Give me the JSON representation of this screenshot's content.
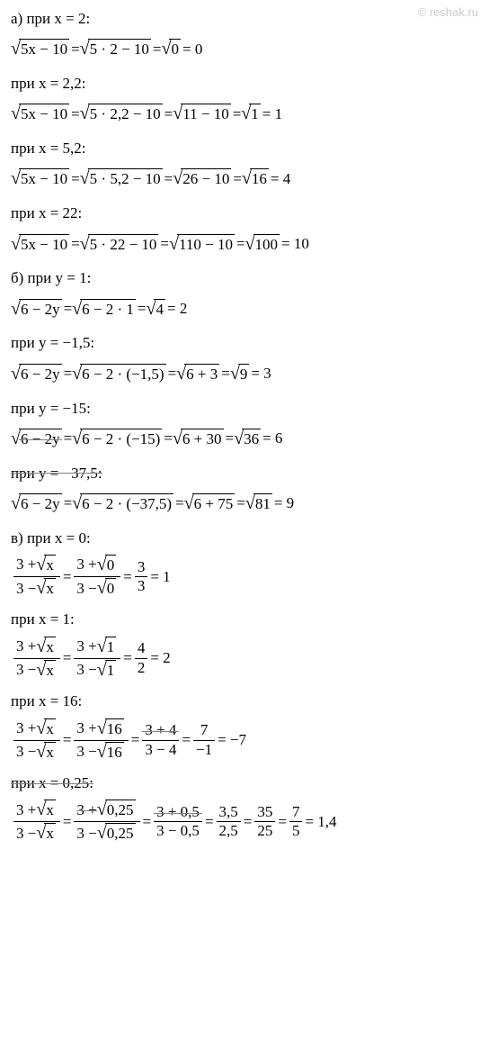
{
  "watermark": "© reshak.ru",
  "lines": {
    "a_at_2": "а) при x = 2:",
    "a_eq_2_l": "5x − 10",
    "a_eq_2_m": "5 · 2 − 10",
    "a_eq_2_r": "0",
    "a_eq_2_res": " = 0",
    "a_at_22": "при x = 2,2:",
    "a_eq_22_l": "5x − 10",
    "a_eq_22_m": "5 · 2,2 − 10",
    "a_eq_22_m2": "11 − 10",
    "a_eq_22_r": "1",
    "a_eq_22_res": " = 1",
    "a_at_52": "при x = 5,2:",
    "a_eq_52_l": "5x − 10",
    "a_eq_52_m": "5 · 5,2 − 10",
    "a_eq_52_m2": "26 − 10",
    "a_eq_52_r": "16",
    "a_eq_52_res": " = 4",
    "a_at_x22": "при x = 22:",
    "a_eq_x22_l": "5x − 10",
    "a_eq_x22_m": "5 · 22 − 10",
    "a_eq_x22_m2": "110 − 10",
    "a_eq_x22_r": "100",
    "a_eq_x22_res": " = 10",
    "b_at_1": "б) при y = 1:",
    "b_eq_1_l": "6 − 2y",
    "b_eq_1_m": "6 − 2 · 1",
    "b_eq_1_r": "4",
    "b_eq_1_res": " = 2",
    "b_at_n15": "при y = −1,5:",
    "b_eq_n15_l": "6 − 2y",
    "b_eq_n15_m": "6 − 2 · (−1,5)",
    "b_eq_n15_m2": "6 + 3",
    "b_eq_n15_r": "9",
    "b_eq_n15_res": " = 3",
    "b_at_n15b": "при y = −15:",
    "b_eq_n15b_l": "6 − 2y",
    "b_eq_n15b_m": "6 − 2 · (−15)",
    "b_eq_n15b_m2": "6 + 30",
    "b_eq_n15b_r": "36",
    "b_eq_n15b_res": " = 6",
    "b_at_n375": "при y = −37,5:",
    "b_eq_n375_l": "6 − 2y",
    "b_eq_n375_m": "6 − 2 · (−37,5)",
    "b_eq_n375_m2": "6 + 75",
    "b_eq_n375_r": "81",
    "b_eq_n375_res": " = 9",
    "c_at_0": "в) при x = 0:",
    "c_eq_0_num1": "3 + ",
    "c_eq_0_den1": "3 − ",
    "c_eq_0_sq1": "x",
    "c_eq_0_num2": "3 + ",
    "c_eq_0_den2": "3 − ",
    "c_eq_0_sq2": "0",
    "c_eq_0_num3": "3",
    "c_eq_0_den3": "3",
    "c_eq_0_res": " = 1",
    "c_at_1": "при x = 1:",
    "c_eq_1_sq1": "x",
    "c_eq_1_sq2": "1",
    "c_eq_1_num3": "4",
    "c_eq_1_den3": "2",
    "c_eq_1_res": " = 2",
    "c_at_16": "при x = 16:",
    "c_eq_16_sq1": "x",
    "c_eq_16_sq2": "16",
    "c_eq_16_num3": "3 + 4",
    "c_eq_16_den3": "3 − 4",
    "c_eq_16_num4": "7",
    "c_eq_16_den4": "−1",
    "c_eq_16_res": " = −7",
    "c_at_025": "при x = 0,25:",
    "c_eq_025_sq1": "x",
    "c_eq_025_sq2": "0,25",
    "c_eq_025_num3": "3 + 0,5",
    "c_eq_025_den3": "3 − 0,5",
    "c_eq_025_num4": "3,5",
    "c_eq_025_den4": "2,5",
    "c_eq_025_num5": "35",
    "c_eq_025_den5": "25",
    "c_eq_025_num6": "7",
    "c_eq_025_den6": "5",
    "c_eq_025_res": " = 1,4",
    "eq": " = ",
    "plus3": "3 + ",
    "minus3": "3 − "
  },
  "colors": {
    "text": "#000000",
    "watermark": "#cccccc",
    "strike": "#808080"
  }
}
